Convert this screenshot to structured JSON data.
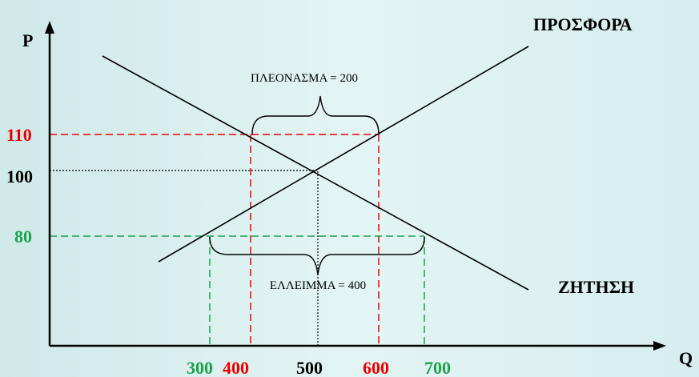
{
  "axes": {
    "y_label": "P",
    "x_label": "Q"
  },
  "curves": {
    "supply": "ΠΡΟΣΦΟΡΑ",
    "demand": "ΖΗΤΗΣΗ"
  },
  "price_labels": [
    110,
    100,
    80
  ],
  "quantity_labels": [
    300,
    400,
    500,
    600,
    700
  ],
  "annotations": {
    "surplus": "ΠΛΕΟΝΑΣΜΑ = 200",
    "shortage": "ΕΛΛΕΙΜΜΑ = 400"
  }
}
